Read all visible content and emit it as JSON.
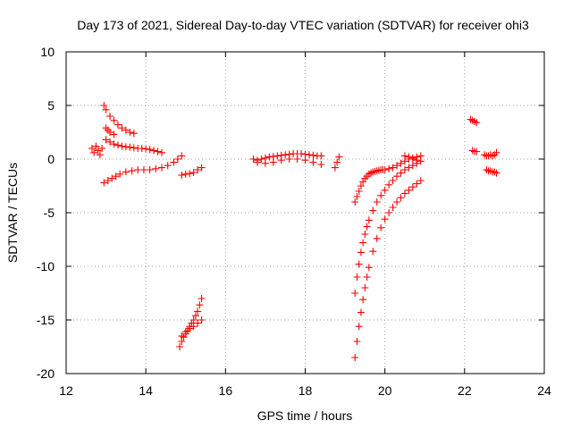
{
  "chart_data": {
    "type": "scatter",
    "title": "Day 173 of 2021, Sidereal Day-to-day VTEC variation (SDTVAR) for receiver ohi3",
    "xlabel": "GPS time / hours",
    "ylabel": "SDTVAR / TECUs",
    "xlim": [
      12,
      24
    ],
    "ylim": [
      -20,
      10
    ],
    "x_ticks": [
      12,
      14,
      16,
      18,
      20,
      22,
      24
    ],
    "y_ticks": [
      -20,
      -15,
      -10,
      -5,
      0,
      5,
      10
    ],
    "grid": true,
    "marker": "+",
    "color": "#ff0000",
    "series": [
      {
        "name": "arc-1",
        "x": [
          12.65,
          12.7,
          12.75,
          12.8,
          12.85,
          12.9
        ],
        "y": [
          1.0,
          0.6,
          1.2,
          0.8,
          0.4,
          1.0
        ]
      },
      {
        "name": "arc-2",
        "x": [
          12.95,
          13.0,
          13.1,
          13.2,
          13.3,
          13.4,
          13.5,
          13.6,
          13.7
        ],
        "y": [
          5.0,
          4.6,
          4.0,
          3.6,
          3.2,
          2.9,
          2.7,
          2.5,
          2.4
        ]
      },
      {
        "name": "arc-3",
        "x": [
          13.0,
          13.05,
          13.1,
          13.2
        ],
        "y": [
          2.9,
          2.7,
          2.5,
          2.3
        ]
      },
      {
        "name": "arc-4",
        "x": [
          13.0,
          13.1,
          13.2,
          13.3,
          13.4,
          13.5,
          13.6,
          13.7,
          13.8,
          13.9,
          14.0,
          14.1,
          14.2,
          14.3,
          14.4
        ],
        "y": [
          1.8,
          1.6,
          1.4,
          1.3,
          1.2,
          1.15,
          1.1,
          1.05,
          1.0,
          1.0,
          0.95,
          0.9,
          0.8,
          0.7,
          0.6
        ]
      },
      {
        "name": "arc-5",
        "x": [
          12.95,
          13.05,
          13.15,
          13.25,
          13.35,
          13.5,
          13.65,
          13.8,
          13.95,
          14.1,
          14.25,
          14.4,
          14.55,
          14.7,
          14.8,
          14.9
        ],
        "y": [
          -2.2,
          -2.0,
          -1.8,
          -1.6,
          -1.4,
          -1.2,
          -1.1,
          -1.0,
          -1.0,
          -1.0,
          -0.9,
          -0.8,
          -0.6,
          -0.3,
          0.0,
          0.3
        ]
      },
      {
        "name": "arc-6",
        "x": [
          14.9,
          15.0,
          15.1,
          15.2,
          15.3,
          15.4
        ],
        "y": [
          -1.5,
          -1.4,
          -1.35,
          -1.25,
          -1.0,
          -0.8
        ]
      },
      {
        "name": "arc-7",
        "x": [
          14.85,
          14.9,
          14.95,
          15.0,
          15.05,
          15.1,
          15.15,
          15.2,
          15.25,
          15.3,
          15.35,
          15.4
        ],
        "y": [
          -17.5,
          -17.0,
          -16.6,
          -16.3,
          -16.0,
          -15.6,
          -15.3,
          -15.0,
          -14.6,
          -14.2,
          -13.6,
          -13.0
        ]
      },
      {
        "name": "arc-8",
        "x": [
          14.9,
          15.0,
          15.1,
          15.2,
          15.3,
          15.4
        ],
        "y": [
          -16.5,
          -16.1,
          -15.8,
          -15.6,
          -15.3,
          -15.0
        ]
      },
      {
        "name": "arc-9",
        "x": [
          16.7,
          16.8,
          16.9,
          17.0,
          17.1,
          17.2,
          17.3,
          17.4,
          17.5,
          17.6,
          17.7,
          17.8,
          17.9,
          18.0,
          18.1,
          18.2,
          18.3,
          18.4
        ],
        "y": [
          0.0,
          -0.1,
          0.0,
          0.1,
          0.2,
          0.25,
          0.3,
          0.35,
          0.4,
          0.45,
          0.5,
          0.5,
          0.5,
          0.45,
          0.4,
          0.35,
          0.3,
          0.3
        ]
      },
      {
        "name": "arc-10",
        "x": [
          16.8,
          17.0,
          17.2,
          17.4,
          17.6,
          17.8,
          18.0,
          18.2,
          18.4
        ],
        "y": [
          -0.3,
          -0.4,
          -0.3,
          -0.1,
          0.0,
          0.0,
          -0.1,
          -0.3,
          -0.5
        ]
      },
      {
        "name": "arc-11",
        "x": [
          18.75,
          18.8,
          18.85
        ],
        "y": [
          -0.8,
          -0.3,
          0.2
        ]
      },
      {
        "name": "arc-12",
        "x": [
          19.25,
          19.3,
          19.35,
          19.4,
          19.45,
          19.5,
          19.55,
          19.6,
          19.65,
          19.7,
          19.75,
          19.8,
          19.85,
          19.9,
          19.95,
          20.0,
          20.1,
          20.2,
          20.3,
          20.4,
          20.5,
          20.6,
          20.7,
          20.8,
          20.9
        ],
        "y": [
          -4.0,
          -3.5,
          -3.0,
          -2.5,
          -2.1,
          -1.8,
          -1.6,
          -1.4,
          -1.3,
          -1.2,
          -1.15,
          -1.1,
          -1.05,
          -1.0,
          -1.0,
          -1.0,
          -0.9,
          -0.8,
          -0.6,
          -0.4,
          -0.2,
          0.0,
          0.1,
          0.2,
          0.3
        ]
      },
      {
        "name": "arc-13",
        "x": [
          19.25,
          19.3,
          19.35,
          19.4,
          19.45,
          19.5,
          19.55,
          19.6,
          19.7,
          19.8,
          19.9,
          20.0,
          20.1,
          20.2,
          20.3,
          20.4,
          20.5,
          20.6,
          20.7,
          20.8
        ],
        "y": [
          -12.5,
          -11.0,
          -9.8,
          -8.7,
          -7.8,
          -7.0,
          -6.3,
          -5.7,
          -4.8,
          -4.0,
          -3.4,
          -2.9,
          -2.4,
          -2.0,
          -1.6,
          -1.3,
          -1.0,
          -0.8,
          -0.6,
          -0.4
        ]
      },
      {
        "name": "arc-14",
        "x": [
          19.25,
          19.3,
          19.35,
          19.4,
          19.45,
          19.5,
          19.55,
          19.6,
          19.7,
          19.8,
          19.9,
          20.0,
          20.1,
          20.2,
          20.3,
          20.4,
          20.5,
          20.6,
          20.7,
          20.8,
          20.9
        ],
        "y": [
          -18.5,
          -17.0,
          -15.6,
          -14.3,
          -13.1,
          -12.0,
          -11.0,
          -10.1,
          -8.6,
          -7.4,
          -6.4,
          -5.6,
          -5.0,
          -4.5,
          -4.0,
          -3.6,
          -3.2,
          -2.9,
          -2.6,
          -2.3,
          -2.0
        ]
      },
      {
        "name": "arc-15",
        "x": [
          20.5,
          20.6,
          20.7,
          20.8,
          20.9
        ],
        "y": [
          0.3,
          0.2,
          0.0,
          -0.1,
          -0.2
        ]
      },
      {
        "name": "arc-16",
        "x": [
          22.15,
          22.2,
          22.25,
          22.3
        ],
        "y": [
          3.7,
          3.6,
          3.5,
          3.4
        ]
      },
      {
        "name": "arc-17",
        "x": [
          22.2,
          22.25,
          22.3
        ],
        "y": [
          0.8,
          0.7,
          0.7
        ]
      },
      {
        "name": "arc-18",
        "x": [
          22.5,
          22.55,
          22.6,
          22.65,
          22.7,
          22.75,
          22.8
        ],
        "y": [
          0.4,
          0.3,
          0.3,
          0.4,
          0.3,
          0.4,
          0.6
        ]
      },
      {
        "name": "arc-19",
        "x": [
          22.55,
          22.6,
          22.65,
          22.7,
          22.75,
          22.8
        ],
        "y": [
          -1.0,
          -1.1,
          -1.1,
          -1.2,
          -1.2,
          -1.3
        ]
      }
    ]
  }
}
